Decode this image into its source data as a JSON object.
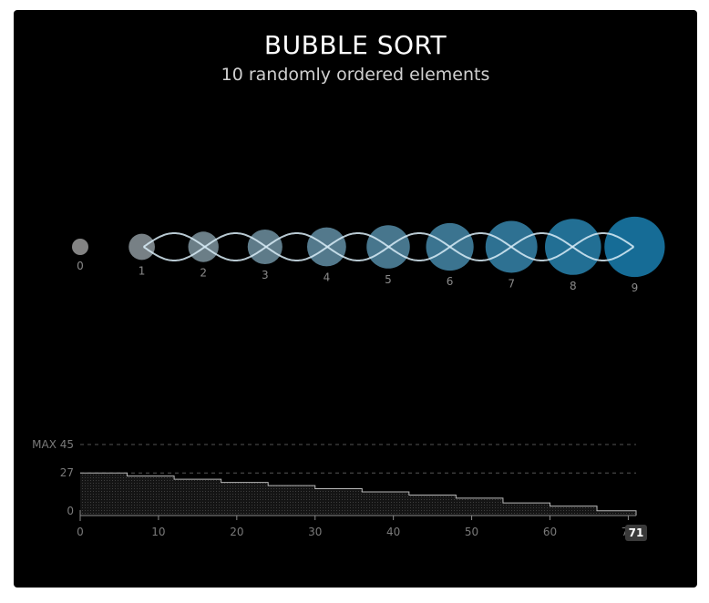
{
  "header": {
    "title": "BUBBLE SORT",
    "subtitle": "10 randomly ordered elements"
  },
  "elements": {
    "labels": [
      "0",
      "1",
      "2",
      "3",
      "4",
      "5",
      "6",
      "7",
      "8",
      "9"
    ],
    "values": [
      0,
      1,
      2,
      3,
      4,
      5,
      6,
      7,
      8,
      9
    ]
  },
  "chart_data": {
    "type": "area",
    "title": "",
    "xlabel": "",
    "ylabel": "",
    "x_ticks": [
      "0",
      "10",
      "20",
      "30",
      "40",
      "50",
      "60",
      "70"
    ],
    "xlim": [
      0,
      71
    ],
    "ylim": [
      0,
      45
    ],
    "max_label": "MAX 45",
    "y_ticks": [
      "27",
      "0"
    ],
    "current_step": "71",
    "steps": [
      0,
      6,
      12,
      18,
      24,
      30,
      36,
      42,
      48,
      54,
      60,
      66,
      71
    ],
    "values": [
      27,
      25,
      23,
      21,
      19,
      17,
      15,
      13,
      11,
      8,
      6,
      3,
      0
    ],
    "colors": {
      "line": "#b8b8b8",
      "grid": "#555555",
      "badge": "#3a3a3a"
    }
  },
  "colors": {
    "bubble_start": "#9a9a9a",
    "bubble_end": "#1a7fb0",
    "swap_curve": "#d8ecf7"
  }
}
